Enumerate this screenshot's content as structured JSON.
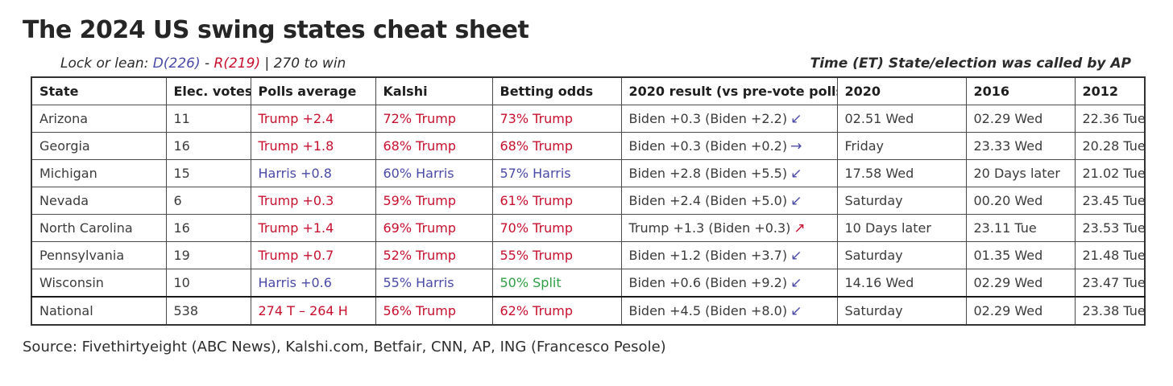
{
  "colors": {
    "trump": "#c8102e",
    "harris": "#4a4aa8",
    "split": "#2f9e44"
  },
  "subtitle": {
    "prefix": "Lock or lean: ",
    "dem": "D(226)",
    "dash": " - ",
    "rep": "R(219)",
    "suffix": " | 270 to win"
  },
  "right_note": "Time (ET) State/election was called by AP",
  "source": "Source: Fivethirtyeight (ABC News), Kalshi.com, Betfair, CNN, AP, ING (Francesco Pesole)",
  "chart_data": {
    "type": "table",
    "title": "The 2024 US swing states cheat sheet",
    "headers": [
      "State",
      "Elec. votes",
      "Polls average",
      "Kalshi",
      "Betting odds",
      "2020 result (vs pre-vote polls)",
      "2020",
      "2016",
      "2012"
    ],
    "rows": [
      {
        "state": "Arizona",
        "ev": "11",
        "polls": {
          "text": "Trump +2.4",
          "party": "trump"
        },
        "kalshi": {
          "text": "72% Trump",
          "party": "trump"
        },
        "betting": {
          "text": "73% Trump",
          "party": "trump"
        },
        "result2020": {
          "text": "Biden +0.3 (Biden +2.2)",
          "arrow": "↙",
          "arrow_party": "harris"
        },
        "called2020": "02.51 Wed",
        "called2016": "02.29 Wed",
        "called2012": "22.36 Tue"
      },
      {
        "state": "Georgia",
        "ev": "16",
        "polls": {
          "text": "Trump +1.8",
          "party": "trump"
        },
        "kalshi": {
          "text": "68% Trump",
          "party": "trump"
        },
        "betting": {
          "text": "68% Trump",
          "party": "trump"
        },
        "result2020": {
          "text": "Biden +0.3 (Biden +0.2)",
          "arrow": "→",
          "arrow_party": "harris"
        },
        "called2020": "Friday",
        "called2016": "23.33 Wed",
        "called2012": "20.28 Tue"
      },
      {
        "state": "Michigan",
        "ev": "15",
        "polls": {
          "text": "Harris +0.8",
          "party": "harris"
        },
        "kalshi": {
          "text": "60% Harris",
          "party": "harris"
        },
        "betting": {
          "text": "57% Harris",
          "party": "harris"
        },
        "result2020": {
          "text": "Biden +2.8 (Biden +5.5)",
          "arrow": "↙",
          "arrow_party": "harris"
        },
        "called2020": "17.58 Wed",
        "called2016": "20 Days later",
        "called2012": "21.02 Tue"
      },
      {
        "state": "Nevada",
        "ev": "6",
        "polls": {
          "text": "Trump +0.3",
          "party": "trump"
        },
        "kalshi": {
          "text": "59% Trump",
          "party": "trump"
        },
        "betting": {
          "text": "61% Trump",
          "party": "trump"
        },
        "result2020": {
          "text": "Biden +2.4 (Biden +5.0)",
          "arrow": "↙",
          "arrow_party": "harris"
        },
        "called2020": "Saturday",
        "called2016": "00.20 Wed",
        "called2012": "23.45 Tue"
      },
      {
        "state": "North Carolina",
        "ev": "16",
        "polls": {
          "text": "Trump +1.4",
          "party": "trump"
        },
        "kalshi": {
          "text": "69% Trump",
          "party": "trump"
        },
        "betting": {
          "text": "70% Trump",
          "party": "trump"
        },
        "result2020": {
          "text": "Trump +1.3 (Biden +0.3)",
          "arrow": "↗",
          "arrow_party": "trump"
        },
        "called2020": "10 Days later",
        "called2016": "23.11 Tue",
        "called2012": "23.53 Tue"
      },
      {
        "state": "Pennsylvania",
        "ev": "19",
        "polls": {
          "text": "Trump +0.7",
          "party": "trump"
        },
        "kalshi": {
          "text": "52% Trump",
          "party": "trump"
        },
        "betting": {
          "text": "55% Trump",
          "party": "trump"
        },
        "result2020": {
          "text": "Biden +1.2 (Biden +3.7)",
          "arrow": "↙",
          "arrow_party": "harris"
        },
        "called2020": "Saturday",
        "called2016": "01.35 Wed",
        "called2012": "21.48 Tue"
      },
      {
        "state": "Wisconsin",
        "ev": "10",
        "polls": {
          "text": "Harris +0.6",
          "party": "harris"
        },
        "kalshi": {
          "text": "55% Harris",
          "party": "harris"
        },
        "betting": {
          "text": "50% Split",
          "party": "split"
        },
        "result2020": {
          "text": "Biden +0.6 (Biden +9.2)",
          "arrow": "↙",
          "arrow_party": "harris"
        },
        "called2020": "14.16 Wed",
        "called2016": "02.29 Wed",
        "called2012": "23.47 Tue"
      },
      {
        "state": "National",
        "ev": "538",
        "polls": {
          "text": "274 T – 264 H",
          "party": "trump"
        },
        "kalshi": {
          "text": "56% Trump",
          "party": "trump"
        },
        "betting": {
          "text": "62% Trump",
          "party": "trump"
        },
        "result2020": {
          "text": "Biden +4.5 (Biden +8.0)",
          "arrow": "↙",
          "arrow_party": "harris"
        },
        "called2020": "Saturday",
        "called2016": "02.29 Wed",
        "called2012": "23.38 Tue"
      }
    ]
  }
}
